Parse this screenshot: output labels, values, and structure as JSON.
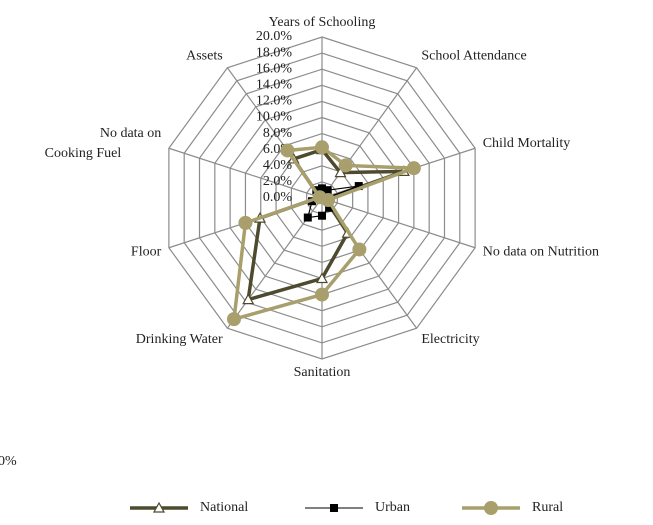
{
  "chart_data": {
    "type": "radar",
    "categories": [
      "Years of Schooling",
      "School Attendance",
      "Child Mortality",
      "No data on Nutrition",
      "Electricity",
      "Sanitation",
      "Drinking Water",
      "Floor",
      "No data on Cooking Fuel",
      "Assets"
    ],
    "rlim": [
      0,
      20
    ],
    "rticks": [
      {
        "value": 0,
        "label": "0.0%"
      },
      {
        "value": 2,
        "label": "2.0%"
      },
      {
        "value": 4,
        "label": "4.0%"
      },
      {
        "value": 6,
        "label": "6.0%"
      },
      {
        "value": 8,
        "label": "8.0%"
      },
      {
        "value": 10,
        "label": "10.0%"
      },
      {
        "value": 12,
        "label": "12.0%"
      },
      {
        "value": 14,
        "label": "14.0%"
      },
      {
        "value": 16,
        "label": "16.0%"
      },
      {
        "value": 18,
        "label": "18.0%"
      },
      {
        "value": 20,
        "label": "20.0%"
      }
    ],
    "grid": true,
    "series": [
      {
        "name": "National",
        "color": "#4d4a2e",
        "marker": "triangle",
        "values": [
          6.0,
          3.9,
          10.7,
          0.5,
          5.4,
          10.0,
          15.6,
          8.1,
          0.3,
          6.0
        ]
      },
      {
        "name": "Urban",
        "color": "#000000",
        "marker": "square",
        "values": [
          1.2,
          1.2,
          4.8,
          0.3,
          1.5,
          2.2,
          3.0,
          1.3,
          0.2,
          1.2
        ]
      },
      {
        "name": "Rural",
        "color": "#a89f6c",
        "marker": "circle",
        "values": [
          6.3,
          5.0,
          12.0,
          0.8,
          7.9,
          12.0,
          18.6,
          10.0,
          0.3,
          7.3
        ]
      }
    ],
    "stray_label": "0%"
  }
}
